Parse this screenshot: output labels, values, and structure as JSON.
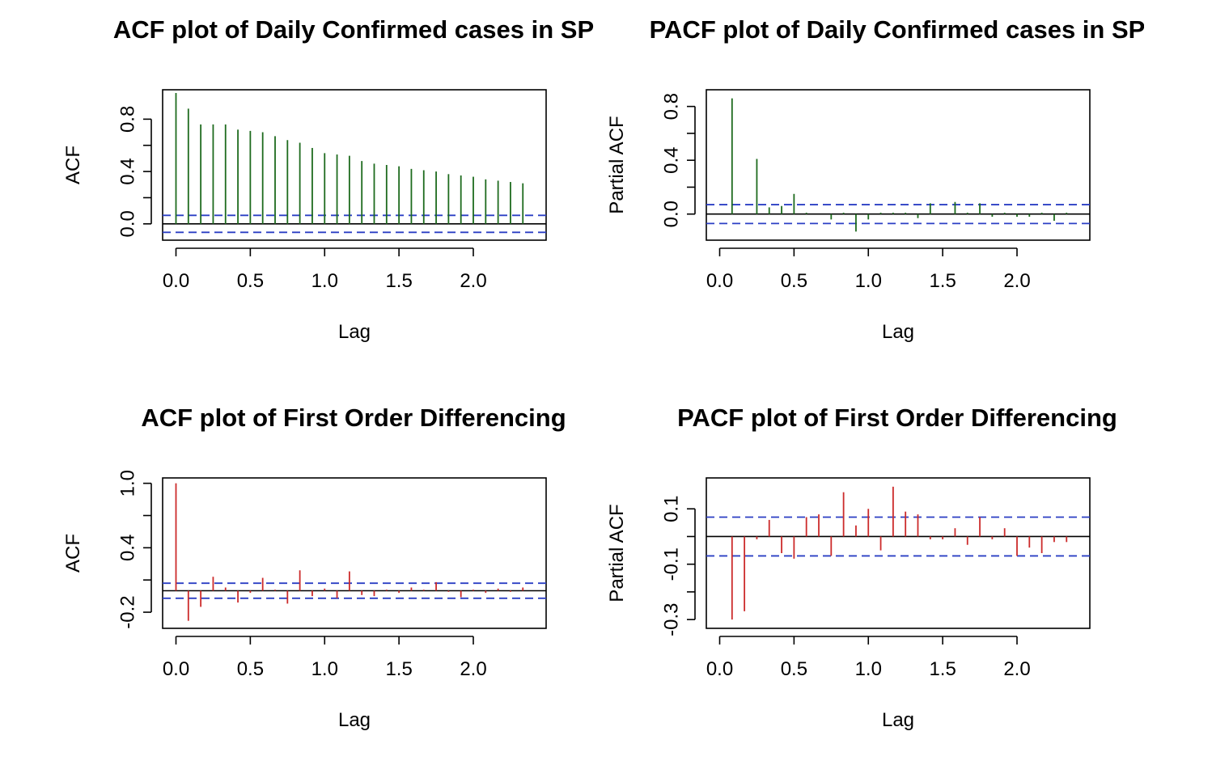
{
  "chart_data": [
    {
      "type": "bar",
      "title": "ACF plot of Daily Confirmed cases in SP",
      "xlabel": "Lag",
      "ylabel": "ACF",
      "xlim": [
        0,
        2.4
      ],
      "ylim": [
        -0.1,
        1.0
      ],
      "xticks": [
        "0.0",
        "0.5",
        "1.0",
        "1.5",
        "2.0"
      ],
      "yticks": [
        "0.0",
        "0.4",
        "0.8"
      ],
      "ci": [
        0.065,
        -0.065
      ],
      "color": "#1e6b1e",
      "x": [
        0,
        0.0833,
        0.1667,
        0.25,
        0.3333,
        0.4167,
        0.5,
        0.5833,
        0.6667,
        0.75,
        0.8333,
        0.9167,
        1.0,
        1.0833,
        1.1667,
        1.25,
        1.3333,
        1.4167,
        1.5,
        1.5833,
        1.6667,
        1.75,
        1.8333,
        1.9167,
        2.0,
        2.0833,
        2.1667,
        2.25,
        2.3333
      ],
      "values": [
        1.0,
        0.88,
        0.76,
        0.76,
        0.76,
        0.72,
        0.71,
        0.7,
        0.67,
        0.64,
        0.62,
        0.58,
        0.54,
        0.53,
        0.52,
        0.48,
        0.46,
        0.45,
        0.44,
        0.42,
        0.41,
        0.4,
        0.38,
        0.37,
        0.36,
        0.34,
        0.33,
        0.32,
        0.31
      ]
    },
    {
      "type": "bar",
      "title": "PACF plot of Daily Confirmed cases in SP",
      "xlabel": "Lag",
      "ylabel": "Partial ACF",
      "xlim": [
        0,
        2.4
      ],
      "ylim": [
        -0.17,
        0.9
      ],
      "xticks": [
        "0.0",
        "0.5",
        "1.0",
        "1.5",
        "2.0"
      ],
      "yticks": [
        "0.0",
        "0.4",
        "0.8"
      ],
      "ci": [
        0.07,
        -0.07
      ],
      "color": "#1e6b1e",
      "x": [
        0.0833,
        0.1667,
        0.25,
        0.3333,
        0.4167,
        0.5,
        0.5833,
        0.6667,
        0.75,
        0.8333,
        0.9167,
        1.0,
        1.0833,
        1.1667,
        1.25,
        1.3333,
        1.4167,
        1.5,
        1.5833,
        1.6667,
        1.75,
        1.8333,
        1.9167,
        2.0,
        2.0833,
        2.1667,
        2.25,
        2.3333
      ],
      "values": [
        0.86,
        0.0,
        0.41,
        0.05,
        0.06,
        0.15,
        0.01,
        0.0,
        -0.04,
        0.01,
        -0.13,
        -0.04,
        0.01,
        0.01,
        0.01,
        -0.03,
        0.08,
        0.0,
        0.09,
        0.01,
        0.08,
        -0.02,
        0.01,
        -0.02,
        -0.02,
        0.01,
        -0.05,
        0.01
      ]
    },
    {
      "type": "bar",
      "title": "ACF plot of First Order Differencing",
      "xlabel": "Lag",
      "ylabel": "ACF",
      "xlim": [
        0,
        2.4
      ],
      "ylim": [
        -0.32,
        1.02
      ],
      "xticks": [
        "0.0",
        "0.5",
        "1.0",
        "1.5",
        "2.0"
      ],
      "yticks": [
        "-0.2",
        "0.4",
        "1.0"
      ],
      "ci": [
        0.07,
        -0.07
      ],
      "color": "#cc2b2b",
      "x": [
        0,
        0.0833,
        0.1667,
        0.25,
        0.3333,
        0.4167,
        0.5,
        0.5833,
        0.6667,
        0.75,
        0.8333,
        0.9167,
        1.0,
        1.0833,
        1.1667,
        1.25,
        1.3333,
        1.4167,
        1.5,
        1.5833,
        1.6667,
        1.75,
        1.8333,
        1.9167,
        2.0,
        2.0833,
        2.1667,
        2.25,
        2.3333
      ],
      "values": [
        1.0,
        -0.28,
        -0.15,
        0.13,
        0.03,
        -0.11,
        -0.02,
        0.12,
        0.01,
        -0.12,
        0.19,
        -0.05,
        0.02,
        -0.07,
        0.18,
        -0.04,
        -0.05,
        0.01,
        -0.02,
        0.03,
        0.01,
        0.08,
        -0.01,
        -0.06,
        0.01,
        -0.02,
        0.02,
        -0.01,
        0.03
      ]
    },
    {
      "type": "bar",
      "title": "PACF plot of First Order Differencing",
      "xlabel": "Lag",
      "ylabel": "Partial ACF",
      "xlim": [
        0,
        2.4
      ],
      "ylim": [
        -0.32,
        0.2
      ],
      "xticks": [
        "0.0",
        "0.5",
        "1.0",
        "1.5",
        "2.0"
      ],
      "yticks": [
        "-0.3",
        "-0.1",
        "0.1"
      ],
      "ci": [
        0.07,
        -0.07
      ],
      "color": "#cc2b2b",
      "x": [
        0.0833,
        0.1667,
        0.25,
        0.3333,
        0.4167,
        0.5,
        0.5833,
        0.6667,
        0.75,
        0.8333,
        0.9167,
        1.0,
        1.0833,
        1.1667,
        1.25,
        1.3333,
        1.4167,
        1.5,
        1.5833,
        1.6667,
        1.75,
        1.8333,
        1.9167,
        2.0,
        2.0833,
        2.1667,
        2.25,
        2.3333
      ],
      "values": [
        -0.3,
        -0.27,
        -0.01,
        0.06,
        -0.06,
        -0.08,
        0.07,
        0.08,
        -0.07,
        0.16,
        0.04,
        0.1,
        -0.05,
        0.18,
        0.09,
        0.08,
        -0.01,
        -0.01,
        0.03,
        -0.03,
        0.07,
        -0.01,
        0.03,
        -0.07,
        -0.04,
        -0.06,
        -0.02,
        -0.02
      ]
    }
  ]
}
